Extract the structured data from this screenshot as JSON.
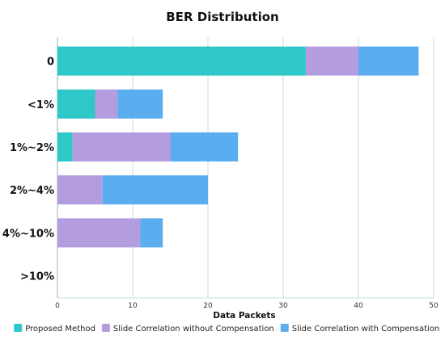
{
  "chart_data": {
    "type": "bar",
    "orientation": "horizontal",
    "stacked": true,
    "title": "BER Distribution",
    "xlabel": "Data Packets",
    "ylabel": "",
    "categories": [
      "0",
      "<1%",
      "1%~2%",
      "2%~4%",
      "4%~10%",
      ">10%"
    ],
    "series": [
      {
        "name": "Proposed Method",
        "color": "#2ec8c8",
        "values": [
          33,
          5,
          2,
          0,
          0,
          0
        ]
      },
      {
        "name": "Slide Correlation without Compensation",
        "color": "#b39ddf",
        "values": [
          7,
          3,
          13,
          6,
          11,
          0
        ]
      },
      {
        "name": "Slide Correlation with Compensation",
        "color": "#5aaef0",
        "values": [
          8,
          6,
          9,
          14,
          3,
          0
        ]
      }
    ],
    "xlim": [
      0,
      50
    ],
    "xticks": [
      0,
      10,
      20,
      30,
      40,
      50
    ],
    "grid": true,
    "legend_position": "bottom"
  }
}
